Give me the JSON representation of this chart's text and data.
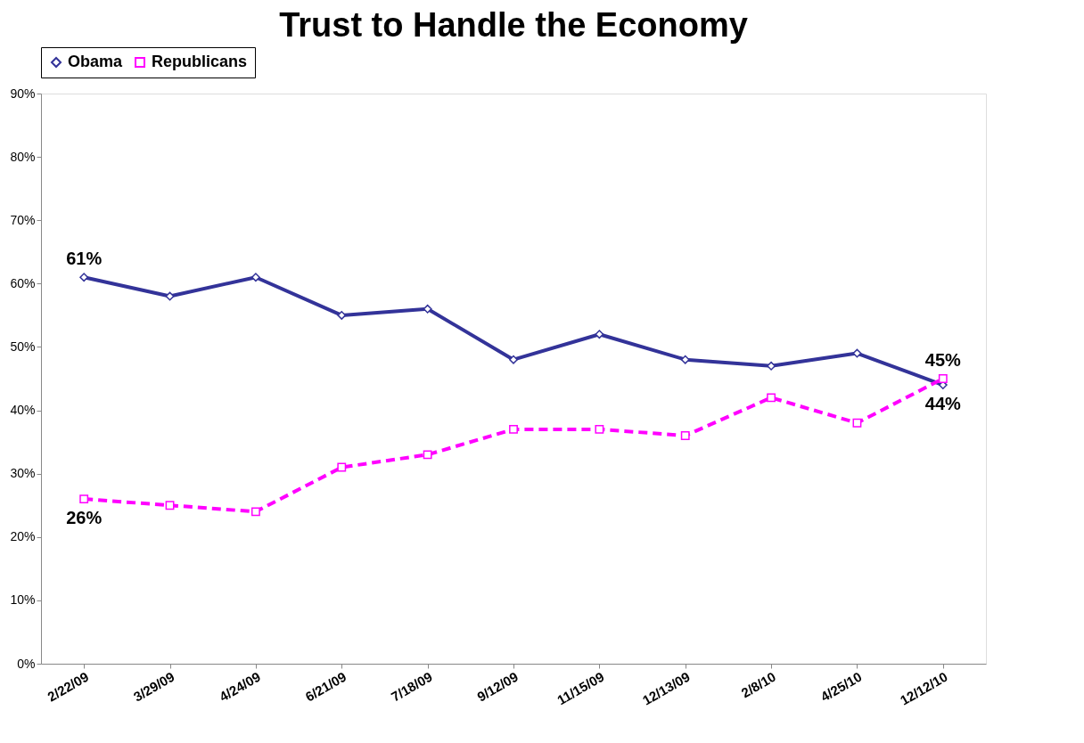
{
  "chart_data": {
    "type": "line",
    "title": "Trust to Handle the Economy",
    "categories": [
      "2/22/09",
      "3/29/09",
      "4/24/09",
      "6/21/09",
      "7/18/09",
      "9/12/09",
      "11/15/09",
      "12/13/09",
      "2/8/10",
      "4/25/10",
      "12/12/10"
    ],
    "series": [
      {
        "name": "Obama",
        "color": "#333399",
        "marker": "diamond",
        "line_style": "solid",
        "values": [
          61,
          58,
          61,
          55,
          56,
          48,
          52,
          48,
          47,
          49,
          44
        ],
        "value_labels": [
          "61%",
          null,
          null,
          null,
          null,
          null,
          null,
          null,
          null,
          null,
          "44%"
        ]
      },
      {
        "name": "Republicans",
        "color": "#ff00ff",
        "marker": "square",
        "line_style": "dashed",
        "values": [
          26,
          25,
          24,
          31,
          33,
          37,
          37,
          36,
          42,
          38,
          45
        ],
        "value_labels": [
          "26%",
          null,
          null,
          null,
          null,
          null,
          null,
          null,
          null,
          null,
          "45%"
        ]
      }
    ],
    "ylim": [
      0,
      90
    ],
    "yticks": [
      {
        "value": 0,
        "label": "0%"
      },
      {
        "value": 10,
        "label": "10%"
      },
      {
        "value": 20,
        "label": "20%"
      },
      {
        "value": 30,
        "label": "30%"
      },
      {
        "value": 40,
        "label": "40%"
      },
      {
        "value": 50,
        "label": "50%"
      },
      {
        "value": 60,
        "label": "60%"
      },
      {
        "value": 70,
        "label": "70%"
      },
      {
        "value": 80,
        "label": "80%"
      },
      {
        "value": 90,
        "label": "90%"
      }
    ],
    "grid": false,
    "legend": "top"
  }
}
